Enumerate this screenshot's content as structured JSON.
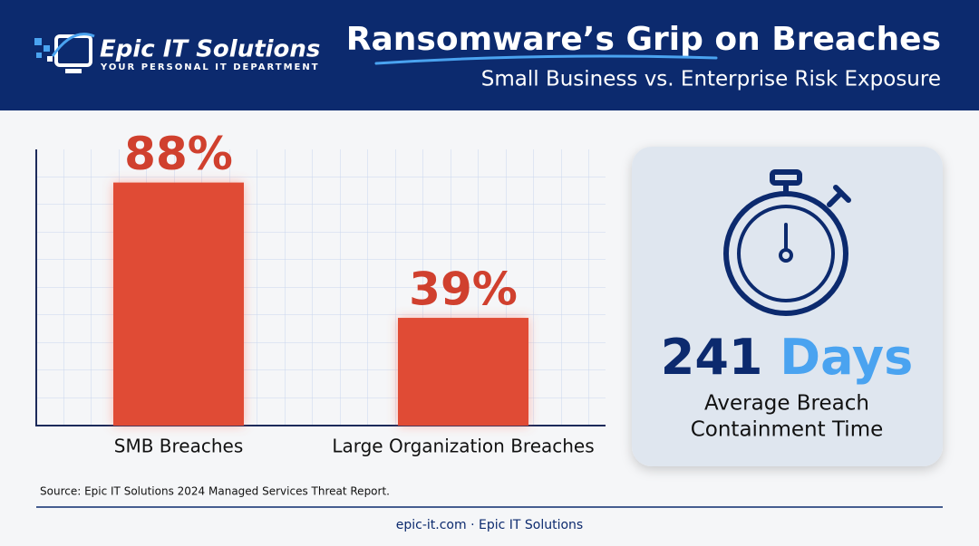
{
  "header": {
    "brand": "Epic IT Solutions",
    "tagline": "YOUR PERSONAL IT DEPARTMENT",
    "title": "Ransomware’s Grip on Breaches",
    "subtitle": "Small Business vs. Enterprise Risk Exposure"
  },
  "chart_data": {
    "type": "bar",
    "categories": [
      "SMB Breaches",
      "Large Organization Breaches"
    ],
    "values": [
      88,
      39
    ],
    "value_labels": [
      "88%",
      "39%"
    ],
    "color": "#e04b35",
    "ylim": [
      0,
      100
    ]
  },
  "card": {
    "number": "241",
    "unit": "Days",
    "caption": [
      "Average Breach",
      "Containment Time"
    ]
  },
  "source": "Source: Epic IT Solutions 2024 Managed Services Threat Report.",
  "footer": "epic-it.com · Epic IT Solutions"
}
